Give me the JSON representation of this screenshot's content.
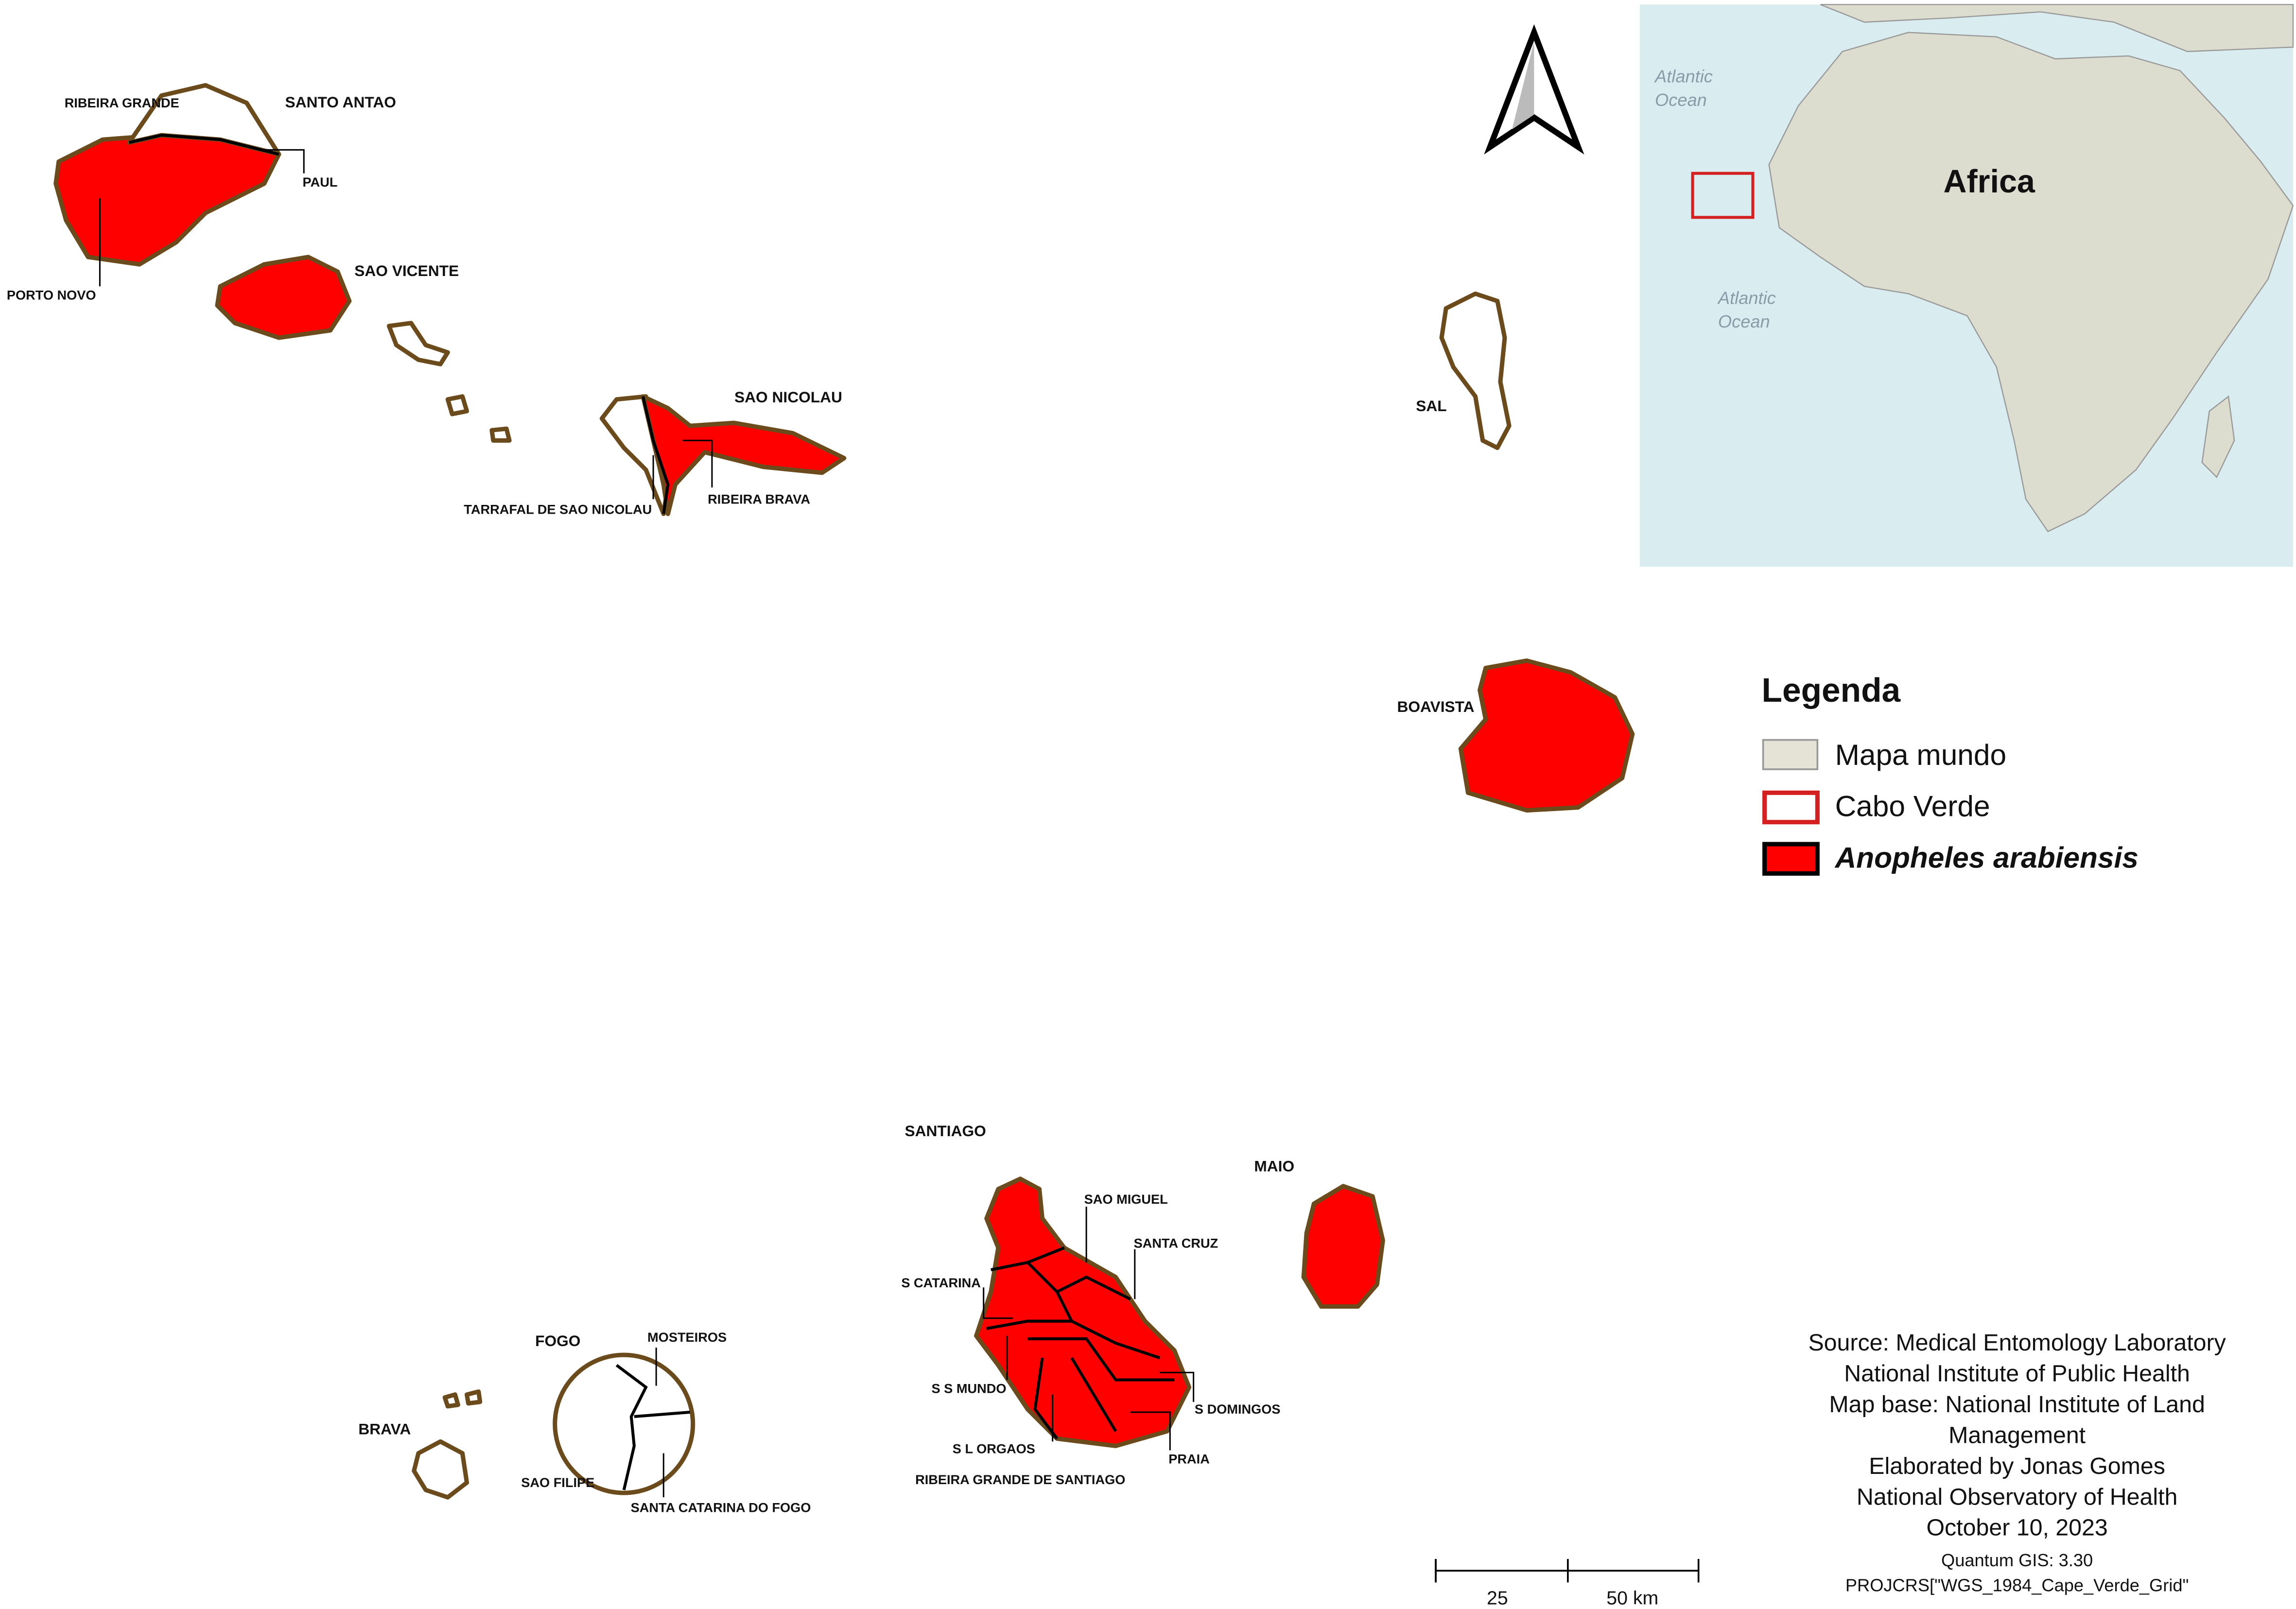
{
  "labels": {
    "islands": [
      "SANTO ANTAO",
      "SAO VICENTE",
      "SAO NICOLAU",
      "SAL",
      "BOAVISTA",
      "SANTIAGO",
      "MAIO",
      "FOGO",
      "BRAVA"
    ],
    "municipalities": [
      "RIBEIRA GRANDE",
      "PAUL",
      "PORTO NOVO",
      "TARRAFAL DE SAO NICOLAU",
      "RIBEIRA BRAVA",
      "SAO MIGUEL",
      "SANTA CRUZ",
      "S CATARINA",
      "S S MUNDO",
      "S DOMINGOS",
      "S L ORGAOS",
      "PRAIA",
      "RIBEIRA GRANDE DE SANTIAGO",
      "MOSTEIROS",
      "SAO FILIPE",
      "SANTA CATARINA DO FOGO"
    ]
  },
  "inset": {
    "ocean_north": [
      "Atlantic",
      "Ocean"
    ],
    "ocean_south": [
      "Atlantic",
      "Ocean"
    ],
    "continent": "Africa"
  },
  "legend": {
    "title": "Legenda",
    "items": [
      "Mapa mundo",
      "Cabo Verde",
      "Anopheles arabiensis"
    ]
  },
  "credits": [
    "Source: Medical Entomology Laboratory",
    "National Institute of Public Health",
    "Map base: National Institute of Land",
    "Management",
    "Elaborated by Jonas Gomes",
    "National Observatory of Health",
    "October 10, 2023"
  ],
  "software": [
    "Quantum GIS: 3.30",
    "PROJCRS[\"WGS_1984_Cape_Verde_Grid\""
  ],
  "scale_bar": [
    "25",
    "50 km"
  ]
}
